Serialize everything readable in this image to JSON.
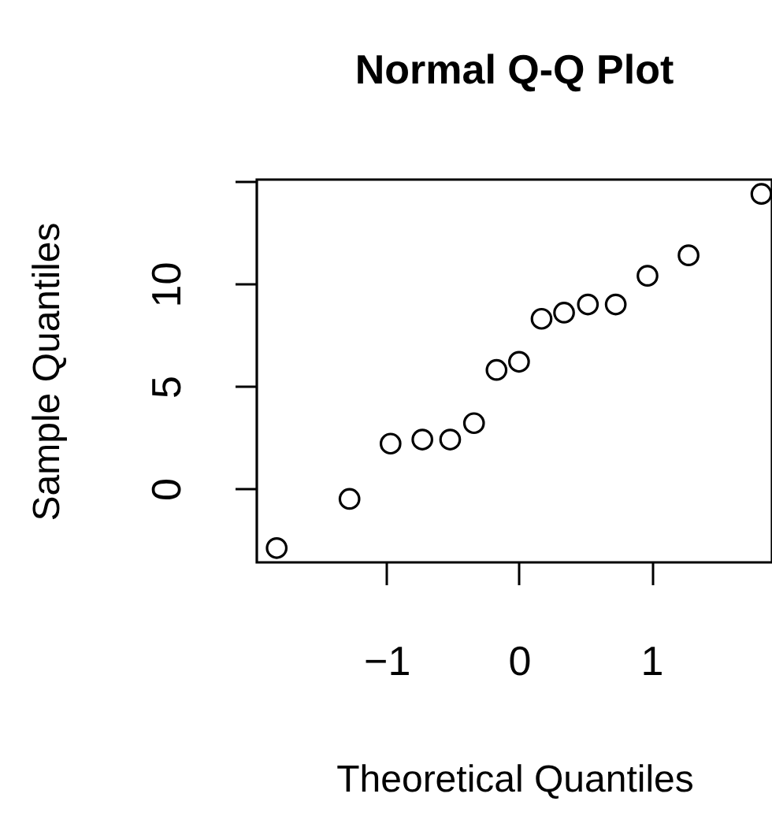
{
  "chart_data": {
    "type": "scatter",
    "title": "Normal Q-Q Plot",
    "xlabel": "Theoretical Quantiles",
    "ylabel": "Sample Quantiles",
    "x": [
      -1.83,
      -1.28,
      -0.97,
      -0.73,
      -0.52,
      -0.34,
      -0.17,
      0.0,
      0.17,
      0.34,
      0.52,
      0.73,
      0.97,
      1.28,
      1.83
    ],
    "series": [
      {
        "color": "#000000",
        "values": [
          -2.9,
          -0.5,
          2.2,
          2.4,
          2.4,
          3.2,
          5.8,
          6.2,
          8.3,
          8.6,
          9.0,
          9.0,
          10.4,
          11.4,
          14.4
        ]
      }
    ],
    "xlim": [
      -1.98,
      1.91
    ],
    "ylim": [
      -3.6,
      15.1
    ],
    "xticks": [
      -1,
      0,
      1
    ],
    "yticks": [
      0,
      5,
      10,
      {
        "value": 15,
        "label": null
      }
    ],
    "marker": "circle",
    "grid": false,
    "legend": false
  }
}
